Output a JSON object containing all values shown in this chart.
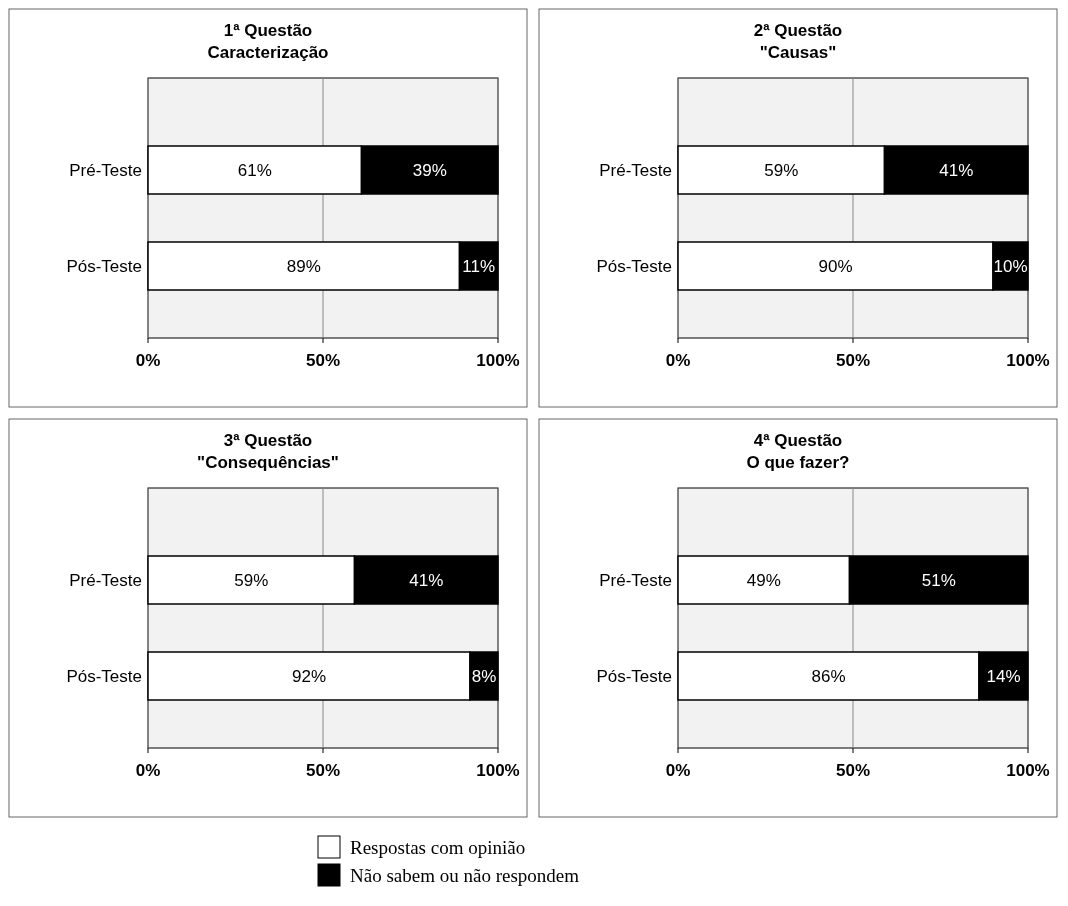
{
  "chart_data": [
    {
      "type": "bar",
      "orientation": "horizontal",
      "stacked": true,
      "title": "1ª Questão",
      "subtitle": "Caracterização",
      "categories": [
        "Pré-Teste",
        "Pós-Teste"
      ],
      "xlim": [
        0,
        100
      ],
      "xticks": [
        {
          "value": 0,
          "label": "0%"
        },
        {
          "value": 50,
          "label": "50%"
        },
        {
          "value": 100,
          "label": "100%"
        }
      ],
      "grid": "x",
      "series": [
        {
          "color": "#ffffff",
          "values": [
            61,
            89
          ],
          "value_labels": [
            "61%",
            "89%"
          ]
        },
        {
          "color": "#000000",
          "values": [
            39,
            11
          ],
          "value_labels": [
            "39%",
            "11%"
          ]
        }
      ]
    },
    {
      "type": "bar",
      "orientation": "horizontal",
      "stacked": true,
      "title": "2ª Questão",
      "subtitle": "\"Causas\"",
      "categories": [
        "Pré-Teste",
        "Pós-Teste"
      ],
      "xlim": [
        0,
        100
      ],
      "xticks": [
        {
          "value": 0,
          "label": "0%"
        },
        {
          "value": 50,
          "label": "50%"
        },
        {
          "value": 100,
          "label": "100%"
        }
      ],
      "grid": "x",
      "series": [
        {
          "color": "#ffffff",
          "values": [
            59,
            90
          ],
          "value_labels": [
            "59%",
            "90%"
          ]
        },
        {
          "color": "#000000",
          "values": [
            41,
            10
          ],
          "value_labels": [
            "41%",
            "10%"
          ]
        }
      ]
    },
    {
      "type": "bar",
      "orientation": "horizontal",
      "stacked": true,
      "title": "3ª Questão",
      "subtitle": "\"Consequências\"",
      "categories": [
        "Pré-Teste",
        "Pós-Teste"
      ],
      "xlim": [
        0,
        100
      ],
      "xticks": [
        {
          "value": 0,
          "label": "0%"
        },
        {
          "value": 50,
          "label": "50%"
        },
        {
          "value": 100,
          "label": "100%"
        }
      ],
      "grid": "x",
      "series": [
        {
          "color": "#ffffff",
          "values": [
            59,
            92
          ],
          "value_labels": [
            "59%",
            "92%"
          ]
        },
        {
          "color": "#000000",
          "values": [
            41,
            8
          ],
          "value_labels": [
            "41%",
            "8%"
          ]
        }
      ]
    },
    {
      "type": "bar",
      "orientation": "horizontal",
      "stacked": true,
      "title": "4ª Questão",
      "subtitle": "O que fazer?",
      "categories": [
        "Pré-Teste",
        "Pós-Teste"
      ],
      "xlim": [
        0,
        100
      ],
      "xticks": [
        {
          "value": 0,
          "label": "0%"
        },
        {
          "value": 50,
          "label": "50%"
        },
        {
          "value": 100,
          "label": "100%"
        }
      ],
      "grid": "x",
      "legend": "bottom",
      "series": [
        {
          "name": "Respostas com opinião",
          "color": "#ffffff",
          "values": [
            49,
            86
          ],
          "value_labels": [
            "49%",
            "86%"
          ]
        },
        {
          "name": "Não sabem ou não respondem",
          "color": "#000000",
          "values": [
            51,
            14
          ],
          "value_labels": [
            "51%",
            "14%"
          ]
        }
      ]
    }
  ]
}
